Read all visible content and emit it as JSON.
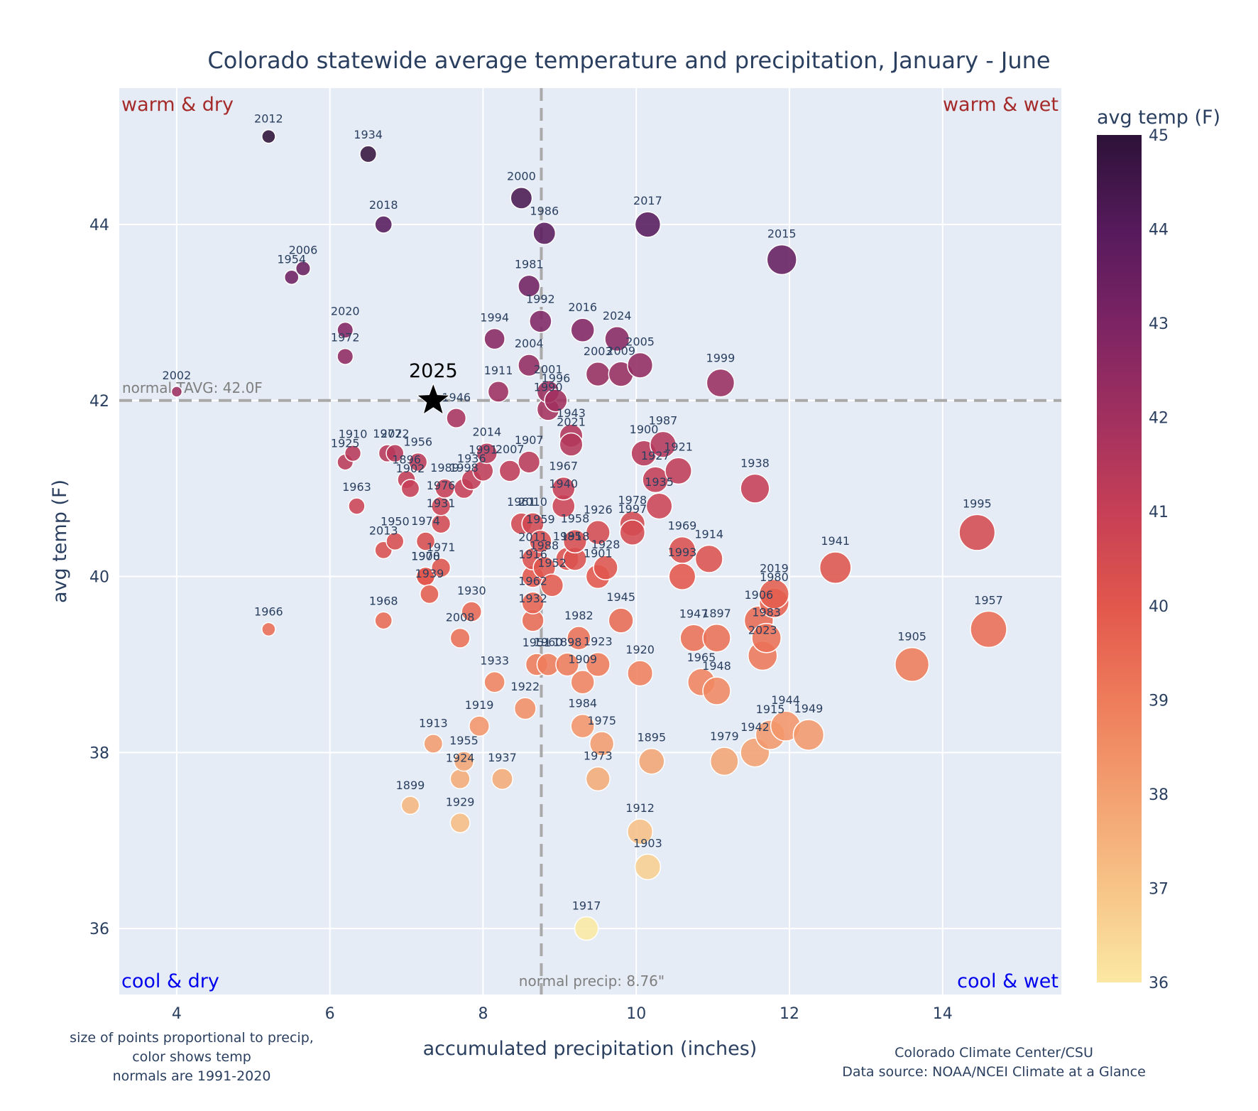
{
  "chart_data": {
    "type": "scatter",
    "title": "Colorado statewide average temperature and precipitation, January - June",
    "xlabel": "accumulated precipitation (inches)",
    "ylabel": "avg temp (F)",
    "xlim": [
      3.25,
      15.55
    ],
    "ylim": [
      35.25,
      45.55
    ],
    "xticks": [
      4,
      6,
      8,
      10,
      12,
      14
    ],
    "yticks": [
      36,
      38,
      40,
      42,
      44
    ],
    "grid": true,
    "colorbar": {
      "title": "avg temp (F)",
      "range": [
        36,
        45
      ],
      "ticks": [
        36,
        37,
        38,
        39,
        40,
        41,
        42,
        43,
        44,
        45
      ],
      "colors": [
        "#fbe8a3",
        "#f7c487",
        "#f3a071",
        "#ee7c5b",
        "#e2574c",
        "#c63f56",
        "#a1305f",
        "#7c2464",
        "#561a5c",
        "#2d1238"
      ]
    },
    "normal_temp": 42.0,
    "normal_temp_label": "normal TAVG: 42.0F",
    "normal_precip": 8.76,
    "normal_precip_label": "normal precip: 8.76\"",
    "quadrants": {
      "top_left": "warm & dry",
      "top_right": "warm & wet",
      "bottom_left": "cool & dry",
      "bottom_right": "cool & wet"
    },
    "highlight": {
      "label": "2025",
      "x": 7.35,
      "y": 42.0
    },
    "points": [
      {
        "year": "1895",
        "x": 10.2,
        "y": 37.9
      },
      {
        "year": "1896",
        "x": 7.0,
        "y": 41.1
      },
      {
        "year": "1897",
        "x": 11.05,
        "y": 39.3
      },
      {
        "year": "1898",
        "x": 9.1,
        "y": 39.0
      },
      {
        "year": "1899",
        "x": 7.05,
        "y": 37.4
      },
      {
        "year": "1900",
        "x": 10.1,
        "y": 41.4
      },
      {
        "year": "1901",
        "x": 9.5,
        "y": 40.0
      },
      {
        "year": "1902",
        "x": 7.05,
        "y": 41.0
      },
      {
        "year": "1903",
        "x": 10.15,
        "y": 36.7
      },
      {
        "year": "1905",
        "x": 13.6,
        "y": 39.0
      },
      {
        "year": "1906",
        "x": 11.6,
        "y": 39.5
      },
      {
        "year": "1907",
        "x": 8.6,
        "y": 41.3
      },
      {
        "year": "1908",
        "x": 7.25,
        "y": 40.0
      },
      {
        "year": "1909",
        "x": 9.3,
        "y": 38.8
      },
      {
        "year": "1910",
        "x": 6.3,
        "y": 41.4
      },
      {
        "year": "1911",
        "x": 8.2,
        "y": 42.1
      },
      {
        "year": "1912",
        "x": 10.05,
        "y": 37.1
      },
      {
        "year": "1913",
        "x": 7.35,
        "y": 38.1
      },
      {
        "year": "1914",
        "x": 10.95,
        "y": 40.2
      },
      {
        "year": "1915",
        "x": 11.75,
        "y": 38.2
      },
      {
        "year": "1916",
        "x": 8.65,
        "y": 40.0
      },
      {
        "year": "1917",
        "x": 9.35,
        "y": 36.0
      },
      {
        "year": "1918",
        "x": 9.2,
        "y": 40.2
      },
      {
        "year": "1919",
        "x": 7.95,
        "y": 38.3
      },
      {
        "year": "1920",
        "x": 10.05,
        "y": 38.9
      },
      {
        "year": "1921",
        "x": 10.55,
        "y": 41.2
      },
      {
        "year": "1922",
        "x": 8.55,
        "y": 38.5
      },
      {
        "year": "1923",
        "x": 9.5,
        "y": 39.0
      },
      {
        "year": "1924",
        "x": 7.7,
        "y": 37.7
      },
      {
        "year": "1925",
        "x": 6.2,
        "y": 41.3
      },
      {
        "year": "1926",
        "x": 9.5,
        "y": 40.5
      },
      {
        "year": "1927",
        "x": 10.25,
        "y": 41.1
      },
      {
        "year": "1928",
        "x": 9.6,
        "y": 40.1
      },
      {
        "year": "1929",
        "x": 7.7,
        "y": 37.2
      },
      {
        "year": "1930",
        "x": 7.85,
        "y": 39.6
      },
      {
        "year": "1931",
        "x": 7.45,
        "y": 40.6
      },
      {
        "year": "1932",
        "x": 8.65,
        "y": 39.5
      },
      {
        "year": "1933",
        "x": 8.15,
        "y": 38.8
      },
      {
        "year": "1934",
        "x": 6.5,
        "y": 44.8
      },
      {
        "year": "1935",
        "x": 10.3,
        "y": 40.8
      },
      {
        "year": "1936",
        "x": 7.85,
        "y": 41.1
      },
      {
        "year": "1937",
        "x": 8.25,
        "y": 37.7
      },
      {
        "year": "1938",
        "x": 11.55,
        "y": 41.0
      },
      {
        "year": "1939",
        "x": 7.3,
        "y": 39.8
      },
      {
        "year": "1940",
        "x": 9.05,
        "y": 40.8
      },
      {
        "year": "1941",
        "x": 12.6,
        "y": 40.1
      },
      {
        "year": "1942",
        "x": 11.55,
        "y": 38.0
      },
      {
        "year": "1943",
        "x": 9.15,
        "y": 41.6
      },
      {
        "year": "1944",
        "x": 11.95,
        "y": 38.3
      },
      {
        "year": "1945",
        "x": 9.8,
        "y": 39.5
      },
      {
        "year": "1946",
        "x": 7.65,
        "y": 41.8
      },
      {
        "year": "1947",
        "x": 10.75,
        "y": 39.3
      },
      {
        "year": "1948",
        "x": 11.05,
        "y": 38.7
      },
      {
        "year": "1949",
        "x": 12.25,
        "y": 38.2
      },
      {
        "year": "1950",
        "x": 6.85,
        "y": 40.4
      },
      {
        "year": "1951",
        "x": 8.7,
        "y": 39.0
      },
      {
        "year": "1952",
        "x": 8.9,
        "y": 39.9
      },
      {
        "year": "1954",
        "x": 5.5,
        "y": 43.4
      },
      {
        "year": "1955",
        "x": 7.75,
        "y": 37.9
      },
      {
        "year": "1956",
        "x": 7.15,
        "y": 41.3
      },
      {
        "year": "1957",
        "x": 14.6,
        "y": 39.4
      },
      {
        "year": "1958",
        "x": 9.2,
        "y": 40.4
      },
      {
        "year": "1959",
        "x": 8.75,
        "y": 40.4
      },
      {
        "year": "1960",
        "x": 8.85,
        "y": 39.0
      },
      {
        "year": "1961",
        "x": 8.5,
        "y": 40.6
      },
      {
        "year": "1962",
        "x": 8.65,
        "y": 39.7
      },
      {
        "year": "1963",
        "x": 6.35,
        "y": 40.8
      },
      {
        "year": "1965",
        "x": 10.85,
        "y": 38.8
      },
      {
        "year": "1966",
        "x": 5.2,
        "y": 39.4
      },
      {
        "year": "1967",
        "x": 9.05,
        "y": 41.0
      },
      {
        "year": "1968",
        "x": 6.7,
        "y": 39.5
      },
      {
        "year": "1969",
        "x": 10.6,
        "y": 40.3
      },
      {
        "year": "1970",
        "x": 7.25,
        "y": 40.0
      },
      {
        "year": "1971",
        "x": 7.45,
        "y": 40.1
      },
      {
        "year": "1972",
        "x": 6.2,
        "y": 42.5
      },
      {
        "year": "1973",
        "x": 9.5,
        "y": 37.7
      },
      {
        "year": "1974",
        "x": 7.25,
        "y": 40.4
      },
      {
        "year": "1975",
        "x": 9.55,
        "y": 38.1
      },
      {
        "year": "1976",
        "x": 7.45,
        "y": 40.8
      },
      {
        "year": "1977",
        "x": 6.75,
        "y": 41.4
      },
      {
        "year": "1978",
        "x": 9.95,
        "y": 40.6
      },
      {
        "year": "1979",
        "x": 11.15,
        "y": 37.9
      },
      {
        "year": "1980",
        "x": 11.8,
        "y": 39.7
      },
      {
        "year": "1981",
        "x": 8.6,
        "y": 43.3
      },
      {
        "year": "1982",
        "x": 9.25,
        "y": 39.3
      },
      {
        "year": "1983",
        "x": 11.7,
        "y": 39.3
      },
      {
        "year": "1984",
        "x": 9.3,
        "y": 38.3
      },
      {
        "year": "1985",
        "x": 9.1,
        "y": 40.2
      },
      {
        "year": "1986",
        "x": 8.8,
        "y": 43.9
      },
      {
        "year": "1987",
        "x": 10.35,
        "y": 41.5
      },
      {
        "year": "1988",
        "x": 8.8,
        "y": 40.1
      },
      {
        "year": "1989",
        "x": 7.5,
        "y": 41.0
      },
      {
        "year": "1990",
        "x": 8.85,
        "y": 41.9
      },
      {
        "year": "1991",
        "x": 8.0,
        "y": 41.2
      },
      {
        "year": "1992",
        "x": 8.75,
        "y": 42.9
      },
      {
        "year": "1993",
        "x": 10.6,
        "y": 40.0
      },
      {
        "year": "1994",
        "x": 8.15,
        "y": 42.7
      },
      {
        "year": "1995",
        "x": 14.45,
        "y": 40.5
      },
      {
        "year": "1996",
        "x": 8.95,
        "y": 42.0
      },
      {
        "year": "1997",
        "x": 9.95,
        "y": 40.5
      },
      {
        "year": "1998",
        "x": 7.75,
        "y": 41.0
      },
      {
        "year": "1999",
        "x": 11.1,
        "y": 42.2
      },
      {
        "year": "2000",
        "x": 8.5,
        "y": 44.3
      },
      {
        "year": "2001",
        "x": 8.85,
        "y": 42.1
      },
      {
        "year": "2002",
        "x": 4.0,
        "y": 42.1
      },
      {
        "year": "2003",
        "x": 9.5,
        "y": 42.3
      },
      {
        "year": "2004",
        "x": 8.6,
        "y": 42.4
      },
      {
        "year": "2005",
        "x": 10.05,
        "y": 42.4
      },
      {
        "year": "2006",
        "x": 5.65,
        "y": 43.5
      },
      {
        "year": "2007",
        "x": 8.35,
        "y": 41.2
      },
      {
        "year": "2008",
        "x": 7.7,
        "y": 39.3
      },
      {
        "year": "2009",
        "x": 9.8,
        "y": 42.3
      },
      {
        "year": "2010",
        "x": 8.65,
        "y": 40.6
      },
      {
        "year": "2011",
        "x": 8.65,
        "y": 40.2
      },
      {
        "year": "2012",
        "x": 5.2,
        "y": 45.0
      },
      {
        "year": "2013",
        "x": 6.7,
        "y": 40.3
      },
      {
        "year": "2014",
        "x": 8.05,
        "y": 41.4
      },
      {
        "year": "2015",
        "x": 11.9,
        "y": 43.6
      },
      {
        "year": "2016",
        "x": 9.3,
        "y": 42.8
      },
      {
        "year": "2017",
        "x": 10.15,
        "y": 44.0
      },
      {
        "year": "2018",
        "x": 6.7,
        "y": 44.0
      },
      {
        "year": "2019",
        "x": 11.8,
        "y": 39.8
      },
      {
        "year": "2020",
        "x": 6.2,
        "y": 42.8
      },
      {
        "year": "2021",
        "x": 9.15,
        "y": 41.5
      },
      {
        "year": "2022",
        "x": 6.85,
        "y": 41.4
      },
      {
        "year": "2023",
        "x": 11.65,
        "y": 39.1
      },
      {
        "year": "2024",
        "x": 9.75,
        "y": 42.7
      }
    ]
  },
  "notes": {
    "left": [
      "size of points proportional to precip,",
      "color shows temp",
      "normals are 1991-2020"
    ],
    "right": [
      "Colorado Climate Center/CSU",
      "Data source: NOAA/NCEI Climate at a Glance"
    ]
  }
}
